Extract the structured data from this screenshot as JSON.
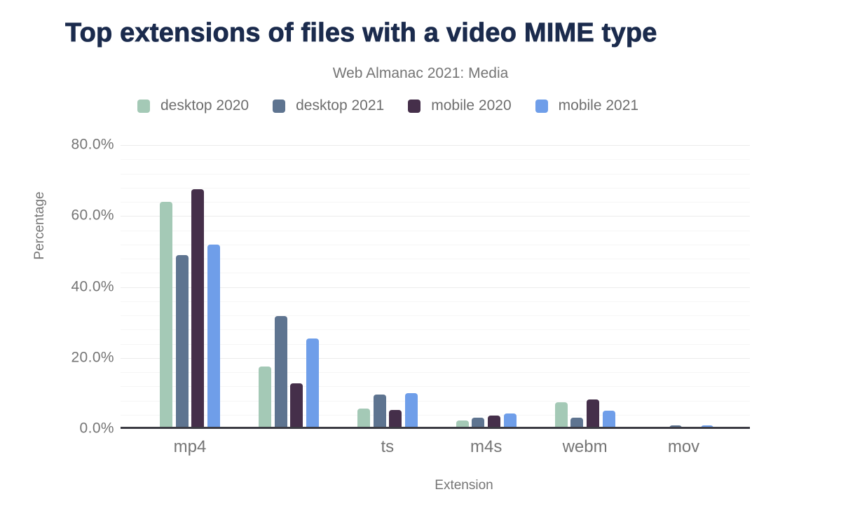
{
  "chart_data": {
    "type": "bar",
    "title": "Top extensions of files with a video MIME type",
    "subtitle": "Web Almanac 2021: Media",
    "xlabel": "Extension",
    "ylabel": "Percentage",
    "ylim": [
      0,
      83
    ],
    "yticks": [
      0,
      20,
      40,
      60,
      80
    ],
    "ytick_labels": [
      "0.0%",
      "20.0%",
      "40.0%",
      "60.0%",
      "80.0%"
    ],
    "grid": {
      "minor_step": 4,
      "major_step": 20,
      "grid_on": true
    },
    "legend_position": "top",
    "categories": [
      "mp4",
      "",
      "ts",
      "m4s",
      "webm",
      "mov"
    ],
    "series": [
      {
        "name": "desktop 2020",
        "color": "#a4c9b6",
        "values": [
          64.0,
          17.6,
          5.7,
          2.3,
          7.5,
          0
        ]
      },
      {
        "name": "desktop 2021",
        "color": "#5e7490",
        "values": [
          49.0,
          31.8,
          9.7,
          3.2,
          3.2,
          1.0
        ]
      },
      {
        "name": "mobile 2020",
        "color": "#452f4a",
        "values": [
          67.5,
          12.8,
          5.4,
          3.8,
          8.3,
          0
        ]
      },
      {
        "name": "mobile 2021",
        "color": "#6f9ee9",
        "values": [
          52.0,
          25.5,
          10.1,
          4.4,
          5.1,
          0.9
        ]
      }
    ]
  },
  "colors": {
    "title": "#1b2b4d",
    "muted_text": "#757575",
    "legend_text": "#6e6e6e",
    "axis_line": "#3b3b43",
    "background": "#ffffff"
  }
}
